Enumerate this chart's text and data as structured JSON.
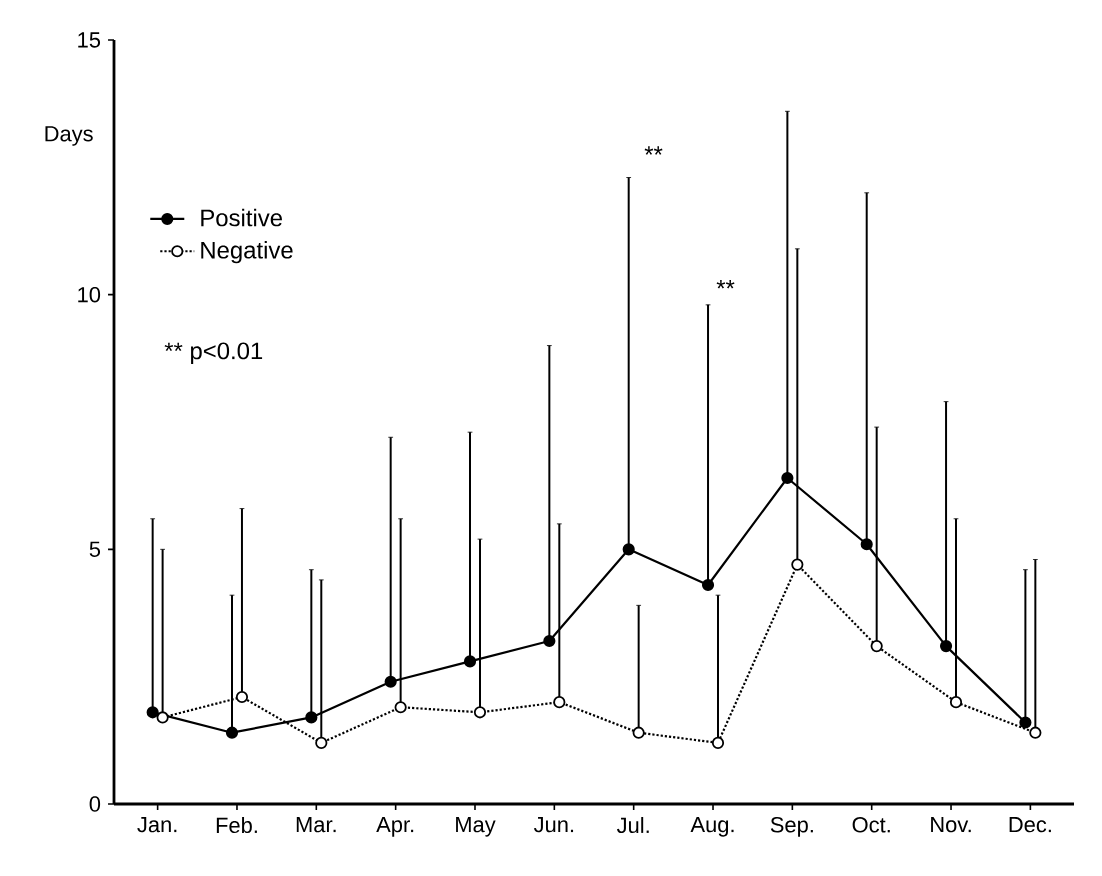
{
  "chart_data": {
    "type": "line",
    "ylabel": "Days",
    "categories": [
      "Jan.",
      "Feb.",
      "Mar.",
      "Apr.",
      "May",
      "Jun.",
      "Jul.",
      "Aug.",
      "Sep.",
      "Oct.",
      "Nov.",
      "Dec."
    ],
    "series": [
      {
        "name": "Positive",
        "color": "#000000",
        "marker": "circle",
        "line_style": "solid",
        "values": [
          1.8,
          1.4,
          1.7,
          2.4,
          2.8,
          3.2,
          5.0,
          4.3,
          6.4,
          5.1,
          3.1,
          1.6
        ],
        "errors": [
          [
            1.8,
            5.6
          ],
          [
            1.4,
            4.1
          ],
          [
            1.7,
            4.6
          ],
          [
            2.4,
            7.2
          ],
          [
            2.8,
            7.3
          ],
          [
            3.2,
            9.0
          ],
          [
            5.0,
            12.3
          ],
          [
            4.3,
            9.8
          ],
          [
            6.4,
            13.6
          ],
          [
            5.1,
            12.0
          ],
          [
            3.1,
            7.9
          ],
          [
            1.6,
            4.6
          ]
        ]
      },
      {
        "name": "Negative",
        "color": "#000000",
        "marker": "circle",
        "line_style": "dotted",
        "values": [
          1.7,
          2.1,
          1.2,
          1.9,
          1.8,
          2.0,
          1.4,
          1.2,
          4.7,
          3.1,
          2.0,
          1.4
        ],
        "errors": [
          [
            1.7,
            5.0
          ],
          [
            2.1,
            5.8
          ],
          [
            1.2,
            4.4
          ],
          [
            1.9,
            5.6
          ],
          [
            1.8,
            5.2
          ],
          [
            2.0,
            5.5
          ],
          [
            1.4,
            3.9
          ],
          [
            1.2,
            4.1
          ],
          [
            4.7,
            10.9
          ],
          [
            3.1,
            7.4
          ],
          [
            2.0,
            5.6
          ],
          [
            1.4,
            4.8
          ]
        ]
      }
    ],
    "ylim": [
      0,
      15
    ],
    "yticks": [
      0,
      5,
      10,
      15
    ],
    "legend": "top left",
    "grid": false,
    "annotations": [
      "**",
      "**",
      "** p<0.01"
    ]
  }
}
